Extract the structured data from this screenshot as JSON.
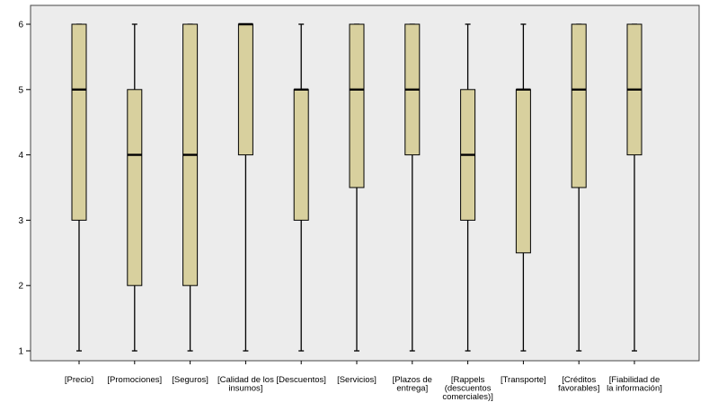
{
  "chart_data": {
    "type": "boxplot",
    "title": "",
    "xlabel": "",
    "ylabel": "",
    "ylim": [
      1,
      6
    ],
    "yticks": [
      "1",
      "2",
      "3",
      "4",
      "5",
      "6"
    ],
    "grid": false,
    "legend": "none",
    "colors": {
      "box_fill": "#d8d09e",
      "plot_bg": "#ececec",
      "line": "#000000"
    },
    "categories": [
      "[Precio]",
      "[Promociones]",
      "[Seguros]",
      "[Calidad de los insumos]",
      "[Descuentos]",
      "[Servicios]",
      "[Plazos de entrega]",
      "[Rappels (descuentos comerciales)]",
      "[Transporte]",
      "[Créditos favorables]",
      "[Fiabilidad de la información]"
    ],
    "category_label_lines": [
      [
        "[Precio]"
      ],
      [
        "[Promociones]"
      ],
      [
        "[Seguros]"
      ],
      [
        "[Calidad de los",
        "insumos]"
      ],
      [
        "[Descuentos]"
      ],
      [
        "[Servicios]"
      ],
      [
        "[Plazos de",
        "entrega]"
      ],
      [
        "[Rappels",
        "(descuentos",
        "comerciales)]"
      ],
      [
        "[Transporte]"
      ],
      [
        "[Créditos",
        "favorables]"
      ],
      [
        "[Fiabilidad de",
        "la información]"
      ]
    ],
    "boxes": [
      {
        "min": 1,
        "q1": 3,
        "median": 5,
        "q3": 6,
        "max": 6
      },
      {
        "min": 1,
        "q1": 2,
        "median": 4,
        "q3": 5,
        "max": 6
      },
      {
        "min": 1,
        "q1": 2,
        "median": 4,
        "q3": 6,
        "max": 6
      },
      {
        "min": 1,
        "q1": 4,
        "median": 6,
        "q3": 6,
        "max": 6
      },
      {
        "min": 1,
        "q1": 3,
        "median": 5,
        "q3": 5,
        "max": 6
      },
      {
        "min": 1,
        "q1": 3.5,
        "median": 5,
        "q3": 6,
        "max": 6
      },
      {
        "min": 1,
        "q1": 4,
        "median": 5,
        "q3": 6,
        "max": 6
      },
      {
        "min": 1,
        "q1": 3,
        "median": 4,
        "q3": 5,
        "max": 6
      },
      {
        "min": 1,
        "q1": 2.5,
        "median": 5,
        "q3": 5,
        "max": 6
      },
      {
        "min": 1,
        "q1": 3.5,
        "median": 5,
        "q3": 6,
        "max": 6
      },
      {
        "min": 1,
        "q1": 4,
        "median": 5,
        "q3": 6,
        "max": 6
      }
    ]
  }
}
